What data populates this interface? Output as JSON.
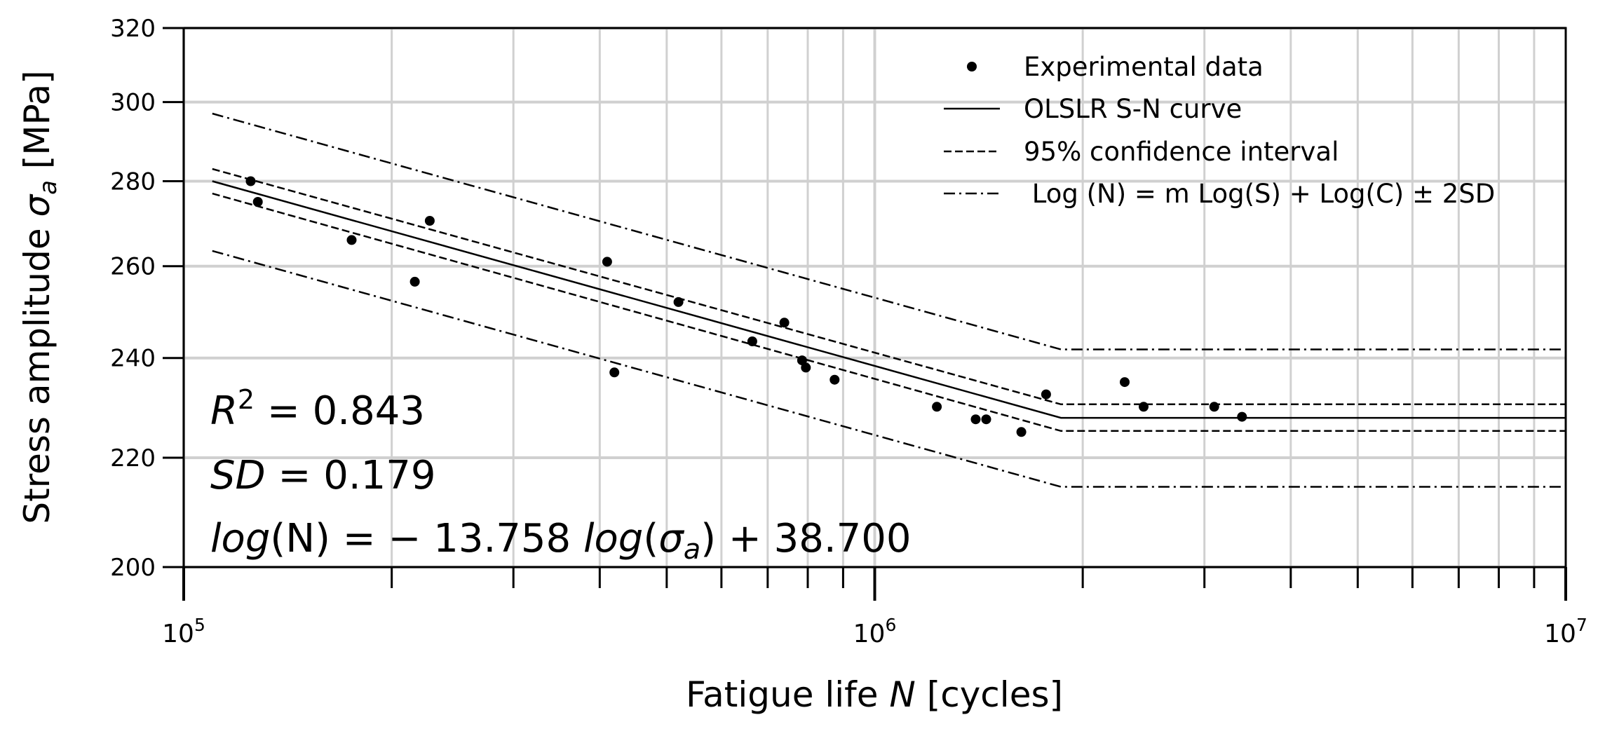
{
  "chart_data": {
    "type": "scatter",
    "xscale": "log",
    "yscale": "log",
    "xlim": [
      100000,
      10000000
    ],
    "ylim": [
      200,
      320
    ],
    "xlabel_prefix": "Fatigue life ",
    "xlabel_var": "N",
    "xlabel_suffix": " [cycles]",
    "ylabel_prefix": "Stress amplitude ",
    "ylabel_var": "σ",
    "ylabel_sub": "a",
    "ylabel_suffix": " [MPa]",
    "yticks": [
      200,
      220,
      240,
      260,
      280,
      300,
      320
    ],
    "ytick_labels": [
      "200",
      "220",
      "240",
      "260",
      "280",
      "300",
      "320"
    ],
    "xticks": [
      {
        "base": "10",
        "exp": "5",
        "value": 100000
      },
      {
        "base": "10",
        "exp": "6",
        "value": 1000000
      },
      {
        "base": "10",
        "exp": "7",
        "value": 10000000
      }
    ],
    "grid": true,
    "legend_position": "top-right",
    "legend": [
      {
        "label": "Experimental data",
        "style": "marker"
      },
      {
        "label": "OLSLR S-N curve",
        "style": "solid"
      },
      {
        "label": "95% confidence interval",
        "style": "dashed"
      },
      {
        "label": " Log (N) = m Log(S) + Log(C) ± 2SD",
        "style": "dashdot"
      }
    ],
    "experimental_data": [
      {
        "x": 125000,
        "y": 280
      },
      {
        "x": 128000,
        "y": 275
      },
      {
        "x": 175000,
        "y": 266
      },
      {
        "x": 216000,
        "y": 256.5
      },
      {
        "x": 227000,
        "y": 270.5
      },
      {
        "x": 410000,
        "y": 261
      },
      {
        "x": 420000,
        "y": 237
      },
      {
        "x": 520000,
        "y": 252
      },
      {
        "x": 665000,
        "y": 243.5
      },
      {
        "x": 740000,
        "y": 247.5
      },
      {
        "x": 785000,
        "y": 239.5
      },
      {
        "x": 795000,
        "y": 238
      },
      {
        "x": 875000,
        "y": 235.5
      },
      {
        "x": 1230000,
        "y": 230
      },
      {
        "x": 1400000,
        "y": 227.5
      },
      {
        "x": 1450000,
        "y": 227.5
      },
      {
        "x": 1630000,
        "y": 225
      },
      {
        "x": 1770000,
        "y": 232.5
      },
      {
        "x": 2300000,
        "y": 235
      },
      {
        "x": 2450000,
        "y": 230
      },
      {
        "x": 3100000,
        "y": 230
      },
      {
        "x": 3400000,
        "y": 228
      }
    ],
    "series": [
      {
        "name": "OLSLR S-N curve",
        "style": "solid",
        "x": [
          110000,
          1860000,
          10000000
        ],
        "y": [
          280,
          227.8,
          227.8
        ]
      },
      {
        "name": "95% confidence interval upper",
        "style": "dashed",
        "x": [
          110000,
          1860000,
          10000000
        ],
        "y": [
          283,
          230.5,
          230.5
        ]
      },
      {
        "name": "95% confidence interval lower",
        "style": "dashed",
        "x": [
          110000,
          1860000,
          10000000
        ],
        "y": [
          277,
          225.2,
          225.2
        ]
      },
      {
        "name": "+2SD",
        "style": "dashdot",
        "x": [
          110000,
          1860000,
          10000000
        ],
        "y": [
          297,
          241.8,
          241.8
        ]
      },
      {
        "name": "-2SD",
        "style": "dashdot",
        "x": [
          110000,
          1860000,
          10000000
        ],
        "y": [
          263.5,
          214.5,
          214.5
        ]
      }
    ],
    "annotations": {
      "r2_var": "R",
      "r2_sup": "2",
      "r2_value": " = 0.843",
      "sd_var": "SD",
      "sd_value": " = 0.179",
      "eq_log1": "log",
      "eq_n": "(N) = − 13.758 ",
      "eq_log2": "log",
      "eq_paren_open": "(",
      "eq_sigma": "σ",
      "eq_sub": "a",
      "eq_rest": ") + 38.700"
    }
  }
}
